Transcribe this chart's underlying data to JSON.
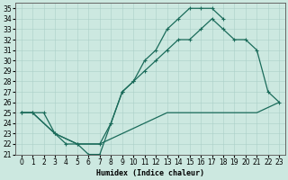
{
  "xlabel": "Humidex (Indice chaleur)",
  "bg_color": "#cce8e0",
  "line_color": "#1a6b5a",
  "grid_color": "#aacfc8",
  "xlim": [
    -0.5,
    23.5
  ],
  "ylim": [
    21,
    35.5
  ],
  "xticks": [
    0,
    1,
    2,
    3,
    4,
    5,
    6,
    7,
    8,
    9,
    10,
    11,
    12,
    13,
    14,
    15,
    16,
    17,
    18,
    19,
    20,
    21,
    22,
    23
  ],
  "yticks": [
    21,
    22,
    23,
    24,
    25,
    26,
    27,
    28,
    29,
    30,
    31,
    32,
    33,
    34,
    35
  ],
  "line1_x": [
    0,
    1,
    2,
    3,
    4,
    5,
    6,
    7,
    8,
    9,
    10,
    11,
    12,
    13,
    14,
    15,
    16,
    17,
    18
  ],
  "line1_y": [
    25,
    25,
    25,
    23,
    22,
    22,
    21,
    21,
    24,
    27,
    28,
    30,
    31,
    33,
    34,
    35,
    35,
    35,
    34
  ],
  "line2_x": [
    0,
    1,
    3,
    5,
    7,
    8,
    9,
    10,
    11,
    12,
    13,
    14,
    15,
    16,
    17,
    18,
    19,
    20,
    21,
    22,
    23
  ],
  "line2_y": [
    25,
    25,
    23,
    22,
    22,
    24,
    27,
    28,
    29,
    30,
    31,
    32,
    32,
    33,
    34,
    33,
    32,
    32,
    31,
    27,
    26
  ],
  "line3_x": [
    0,
    1,
    3,
    5,
    7,
    9,
    11,
    13,
    15,
    17,
    19,
    21,
    23
  ],
  "line3_y": [
    25,
    25,
    23,
    22,
    22,
    23,
    24,
    25,
    25,
    25,
    25,
    25,
    26
  ],
  "marker": "+",
  "tick_fontsize": 5.5,
  "xlabel_fontsize": 6
}
